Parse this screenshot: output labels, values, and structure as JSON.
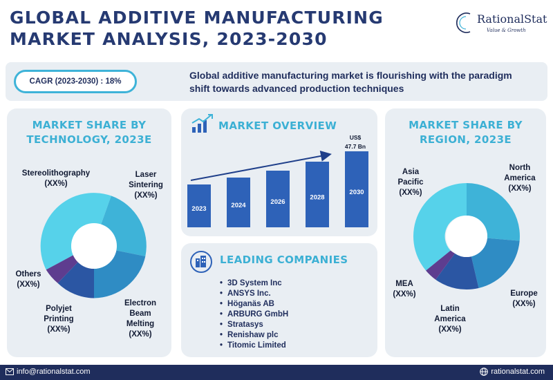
{
  "header": {
    "title_line1": "GLOBAL ADDITIVE MANUFACTURING",
    "title_line2": "MARKET ANALYSIS, 2023-2030",
    "logo_name": "RationalStat",
    "logo_tagline": "Value & Growth"
  },
  "summary": {
    "cagr": "CAGR (2023-2030) : 18%",
    "statement": "Global additive manufacturing market is flourishing with the paradigm shift towards advanced production techniques"
  },
  "technology": {
    "heading_line1": "MARKET SHARE BY",
    "heading_line2": "TECHNOLOGY, 2023E",
    "segments": [
      {
        "name": "Stereolithography",
        "value": "(XX%)",
        "color": "#56d2ea"
      },
      {
        "name": "Laser Sintering",
        "value": "(XX%)",
        "color": "#3eb3d8"
      },
      {
        "name": "Electron Beam Melting",
        "value": "(XX%)",
        "color": "#2f8cc4"
      },
      {
        "name": "Polyjet Printing",
        "value": "(XX%)",
        "color": "#2b56a3"
      },
      {
        "name": "Others",
        "value": "(XX%)",
        "color": "#5e3d8f"
      }
    ]
  },
  "overview": {
    "heading": "MARKET OVERVIEW",
    "value_prefix": "US$",
    "value_amount": "47.7 Bn",
    "years": [
      "2023",
      "2024",
      "2026",
      "2028",
      "2030"
    ],
    "bar_color": "#2e62b8",
    "icon": "chart-icon"
  },
  "companies": {
    "heading": "LEADING COMPANIES",
    "icon": "building-icon",
    "items": [
      "3D System Inc",
      "ANSYS Inc.",
      "Höganäs AB",
      "ARBURG GmbH",
      "Stratasys",
      "Renishaw plc",
      "Titomic Limited"
    ]
  },
  "region": {
    "heading_line1": "MARKET SHARE BY",
    "heading_line2": "REGION, 2023E",
    "segments": [
      {
        "name": "North America",
        "value": "(XX%)",
        "color": "#3eb3d8"
      },
      {
        "name": "Europe",
        "value": "(XX%)",
        "color": "#2f8cc4"
      },
      {
        "name": "Latin America",
        "value": "(XX%)",
        "color": "#2b56a3"
      },
      {
        "name": "MEA",
        "value": "(XX%)",
        "color": "#5e3d8f"
      },
      {
        "name": "Asia Pacific",
        "value": "(XX%)",
        "color": "#56d2ea"
      }
    ]
  },
  "footer": {
    "email": "info@rationalstat.com",
    "website": "rationalstat.com"
  }
}
